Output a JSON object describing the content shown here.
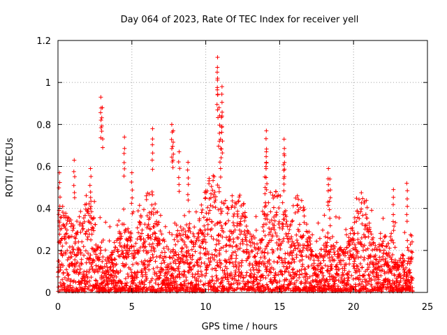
{
  "chart_data": {
    "type": "scatter",
    "title": "Day 064 of 2023, Rate Of TEC Index for receiver yell",
    "xlabel": "GPS time / hours",
    "ylabel": "ROTI / TECUs",
    "xlim": [
      0,
      25
    ],
    "ylim": [
      0,
      1.2
    ],
    "xticks": [
      0,
      5,
      10,
      15,
      20,
      25
    ],
    "xtick_labels": [
      "0",
      "5",
      "10",
      "15",
      "20",
      "25"
    ],
    "yticks": [
      0,
      0.2,
      0.4,
      0.6,
      0.8,
      1,
      1.2
    ],
    "ytick_labels": [
      "0",
      "0.2",
      "0.4",
      "0.6",
      "0.8",
      "1",
      "1.2"
    ],
    "grid": true,
    "marker": "+",
    "series": [
      {
        "name": "ROTI",
        "color": "#ff0000",
        "peaks": [
          {
            "x": 0.1,
            "y": 0.57
          },
          {
            "x": 1.1,
            "y": 0.63
          },
          {
            "x": 2.2,
            "y": 0.59
          },
          {
            "x": 2.9,
            "y": 0.93
          },
          {
            "x": 3.0,
            "y": 0.88
          },
          {
            "x": 4.5,
            "y": 0.74
          },
          {
            "x": 5.0,
            "y": 0.57
          },
          {
            "x": 6.4,
            "y": 0.78
          },
          {
            "x": 7.7,
            "y": 0.8
          },
          {
            "x": 7.8,
            "y": 0.77
          },
          {
            "x": 8.2,
            "y": 0.67
          },
          {
            "x": 8.8,
            "y": 0.62
          },
          {
            "x": 10.8,
            "y": 1.12
          },
          {
            "x": 10.8,
            "y": 1.02
          },
          {
            "x": 10.9,
            "y": 0.88
          },
          {
            "x": 11.1,
            "y": 0.98
          },
          {
            "x": 11.1,
            "y": 0.84
          },
          {
            "x": 11.0,
            "y": 0.73
          },
          {
            "x": 14.1,
            "y": 0.77
          },
          {
            "x": 14.1,
            "y": 0.67
          },
          {
            "x": 14.0,
            "y": 0.55
          },
          {
            "x": 15.3,
            "y": 0.73
          },
          {
            "x": 15.3,
            "y": 0.66
          },
          {
            "x": 18.3,
            "y": 0.59
          },
          {
            "x": 18.4,
            "y": 0.54
          },
          {
            "x": 22.7,
            "y": 0.49
          },
          {
            "x": 23.6,
            "y": 0.52
          }
        ]
      }
    ]
  }
}
